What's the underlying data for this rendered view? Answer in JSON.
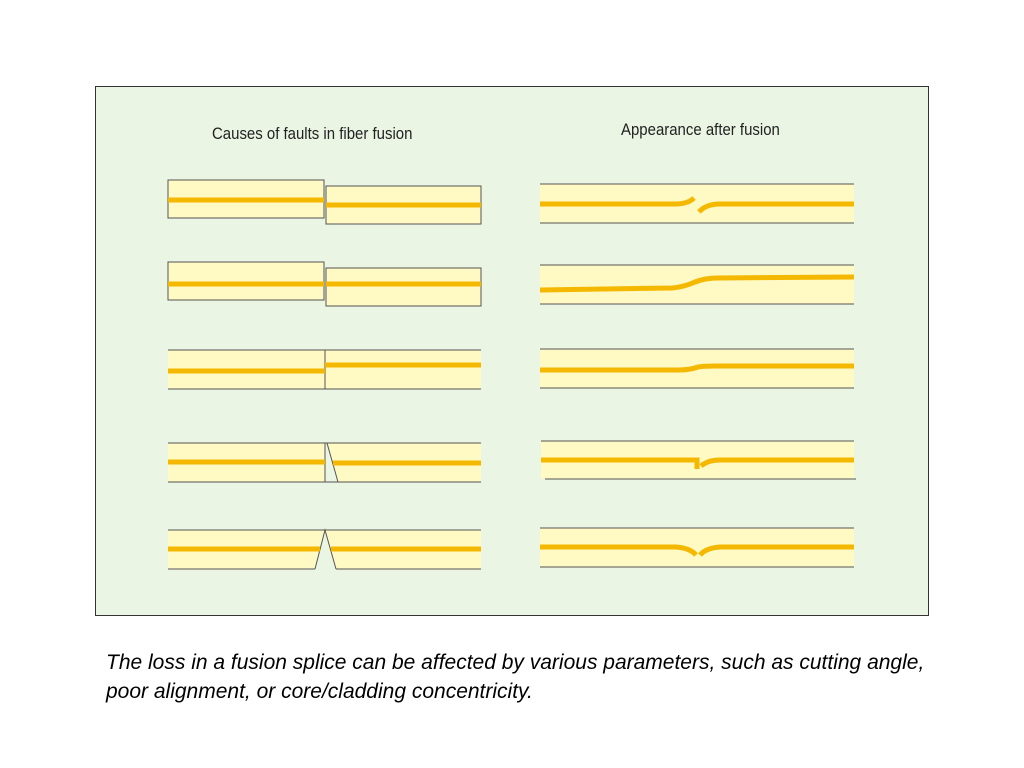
{
  "left_heading": "Causes of faults in fiber fusion",
  "right_heading": "Appearance after fusion",
  "caption": "The loss in a fusion splice can be affected by various parameters, such as cutting angle, poor alignment, or core/cladding concentricity.",
  "colors": {
    "panel_background": "#eaf5e3",
    "cladding": "#fff9c4",
    "core": "#f5b800",
    "outline": "#555555"
  },
  "rows": [
    {
      "fault": "fiber misalignment with core offset",
      "result": "core step with gap after fusion"
    },
    {
      "fault": "fiber misalignment",
      "result": "core bend after fusion"
    },
    {
      "fault": "core offset",
      "result": "slight core bend after fusion"
    },
    {
      "fault": "angled cleave",
      "result": "core notch after fusion"
    },
    {
      "fault": "V-shaped end gap",
      "result": "core notch after fusion"
    }
  ]
}
